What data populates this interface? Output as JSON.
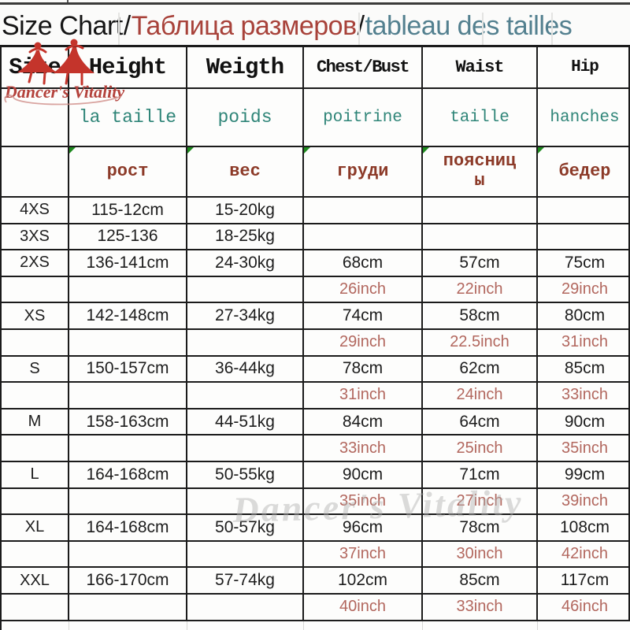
{
  "title": {
    "en": "Size Chart",
    "sep1": "/",
    "ru": "Таблица размеров",
    "sep2": "/",
    "fr": "tableau des tailles"
  },
  "brand": {
    "name": "Dancer's Vitality"
  },
  "watermark": {
    "text": "Dancer's Vitality"
  },
  "colors": {
    "title_russian": "#a8423a",
    "title_french": "#53808f",
    "french_row": "#2f8578",
    "russian_row": "#8c3a28",
    "inch_values": "#b2675e",
    "grid_line": "#1b1b1b",
    "flag_green": "#1e8a1e",
    "brand_red": "#c0392b"
  },
  "table": {
    "header_rows": [
      {
        "kind": "en",
        "cells": [
          "Size",
          "Height",
          "Weigth",
          "Chest/Bust",
          "Waist",
          "Hip"
        ]
      },
      {
        "kind": "fr",
        "cells": [
          "",
          "la taille",
          "poids",
          "poitrine",
          "taille",
          "hanches"
        ]
      },
      {
        "kind": "ru",
        "cells": [
          "",
          "рост",
          "вес",
          "груди",
          "поясниц\nы",
          "бедер"
        ],
        "flags": [
          false,
          true,
          true,
          true,
          true,
          true
        ]
      }
    ],
    "rows": [
      {
        "type": "cm",
        "cells": [
          "4XS",
          "115-12cm",
          "15-20kg",
          "",
          "",
          ""
        ]
      },
      {
        "type": "cm",
        "cells": [
          "3XS",
          "125-136",
          "18-25kg",
          "",
          "",
          ""
        ]
      },
      {
        "type": "cm",
        "cells": [
          "2XS",
          "136-141cm",
          "24-30kg",
          "68cm",
          "57cm",
          "75cm"
        ]
      },
      {
        "type": "inch",
        "cells": [
          "",
          "",
          "",
          "26inch",
          "22inch",
          "29inch"
        ]
      },
      {
        "type": "cm",
        "cells": [
          "XS",
          "142-148cm",
          "27-34kg",
          "74cm",
          "58cm",
          "80cm"
        ]
      },
      {
        "type": "inch",
        "cells": [
          "",
          "",
          "",
          "29inch",
          "22.5inch",
          "31inch"
        ]
      },
      {
        "type": "cm",
        "cells": [
          "S",
          "150-157cm",
          "36-44kg",
          "78cm",
          "62cm",
          "85cm"
        ]
      },
      {
        "type": "inch",
        "cells": [
          "",
          "",
          "",
          "31inch",
          "24inch",
          "33inch"
        ]
      },
      {
        "type": "cm",
        "cells": [
          "M",
          "158-163cm",
          "44-51kg",
          "84cm",
          "64cm",
          "90cm"
        ]
      },
      {
        "type": "inch",
        "cells": [
          "",
          "",
          "",
          "33inch",
          "25inch",
          "35inch"
        ]
      },
      {
        "type": "cm",
        "cells": [
          "L",
          "164-168cm",
          "50-55kg",
          "90cm",
          "71cm",
          "99cm"
        ]
      },
      {
        "type": "inch",
        "cells": [
          "",
          "",
          "",
          "35inch",
          "27inch",
          "39inch"
        ]
      },
      {
        "type": "cm",
        "cells": [
          "XL",
          "164-168cm",
          "50-57kg",
          "96cm",
          "78cm",
          "108cm"
        ]
      },
      {
        "type": "inch",
        "cells": [
          "",
          "",
          "",
          "37inch",
          "30inch",
          "42inch"
        ]
      },
      {
        "type": "cm",
        "cells": [
          "XXL",
          "166-170cm",
          "57-74kg",
          "102cm",
          "85cm",
          "117cm"
        ]
      },
      {
        "type": "inch",
        "cells": [
          "",
          "",
          "",
          "40inch",
          "33inch",
          "46inch"
        ]
      }
    ]
  },
  "chart_data": {
    "type": "table",
    "title": "Size Chart / Таблица размеров / tableau des tailles",
    "columns": [
      "Size",
      "Height",
      "Weigth",
      "Chest/Bust",
      "Waist",
      "Hip"
    ],
    "column_labels_french": [
      "",
      "la taille",
      "poids",
      "poitrine",
      "taille",
      "hanches"
    ],
    "column_labels_russian": [
      "",
      "рост",
      "вес",
      "груди",
      "поясницы",
      "бедер"
    ],
    "rows": [
      [
        "4XS",
        "115-12cm",
        "15-20kg",
        "",
        "",
        ""
      ],
      [
        "3XS",
        "125-136",
        "18-25kg",
        "",
        "",
        ""
      ],
      [
        "2XS",
        "136-141cm",
        "24-30kg",
        "68cm",
        "57cm",
        "75cm"
      ],
      [
        "",
        "",
        "",
        "26inch",
        "22inch",
        "29inch"
      ],
      [
        "XS",
        "142-148cm",
        "27-34kg",
        "74cm",
        "58cm",
        "80cm"
      ],
      [
        "",
        "",
        "",
        "29inch",
        "22.5inch",
        "31inch"
      ],
      [
        "S",
        "150-157cm",
        "36-44kg",
        "78cm",
        "62cm",
        "85cm"
      ],
      [
        "",
        "",
        "",
        "31inch",
        "24inch",
        "33inch"
      ],
      [
        "M",
        "158-163cm",
        "44-51kg",
        "84cm",
        "64cm",
        "90cm"
      ],
      [
        "",
        "",
        "",
        "33inch",
        "25inch",
        "35inch"
      ],
      [
        "L",
        "164-168cm",
        "50-55kg",
        "90cm",
        "71cm",
        "99cm"
      ],
      [
        "",
        "",
        "",
        "35inch",
        "27inch",
        "39inch"
      ],
      [
        "XL",
        "164-168cm",
        "50-57kg",
        "96cm",
        "78cm",
        "108cm"
      ],
      [
        "",
        "",
        "",
        "37inch",
        "30inch",
        "42inch"
      ],
      [
        "XXL",
        "166-170cm",
        "57-74kg",
        "102cm",
        "85cm",
        "117cm"
      ],
      [
        "",
        "",
        "",
        "40inch",
        "33inch",
        "46inch"
      ]
    ]
  }
}
